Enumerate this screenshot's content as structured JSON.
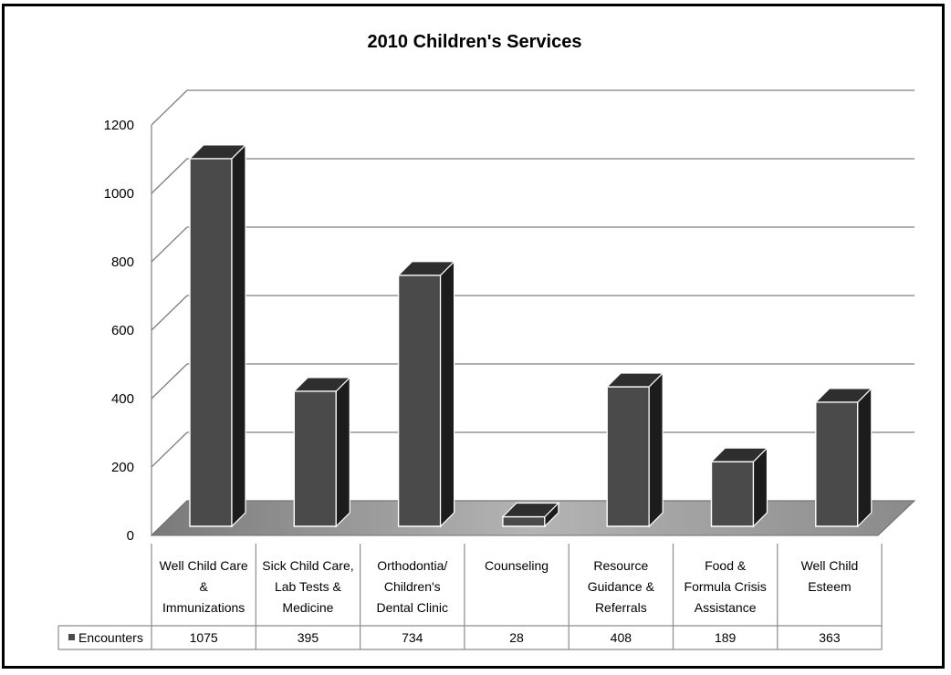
{
  "chart_data": {
    "type": "bar",
    "title": "2010 Children's Services",
    "categories": [
      [
        "Well Child Care",
        "&",
        "Immunizations"
      ],
      [
        "Sick Child Care,",
        "Lab Tests &",
        "Medicine"
      ],
      [
        "Orthodontia/",
        "Children's",
        "Dental Clinic"
      ],
      [
        "Counseling"
      ],
      [
        "Resource",
        "Guidance &",
        "Referrals"
      ],
      [
        "Food &",
        "Formula Crisis",
        "Assistance"
      ],
      [
        "Well Child",
        "Esteem"
      ]
    ],
    "series": [
      {
        "name": "Encounters",
        "values": [
          1075,
          395,
          734,
          28,
          408,
          189,
          363
        ]
      }
    ],
    "value_labels": [
      "1075",
      "395",
      "734",
      "28",
      "408",
      "189",
      "363"
    ],
    "ylim": [
      0,
      1200
    ],
    "yticks": [
      "0",
      "200",
      "400",
      "600",
      "800",
      "1000",
      "1200"
    ],
    "grid": true,
    "style": "3d-column",
    "colors": {
      "bar_front": "#4a4a4a",
      "bar_top": "#2e2e2e",
      "bar_side": "#1c1c1c",
      "floor": "#9a9a9a",
      "grid": "#7f7f7f"
    },
    "legend": "data-table"
  }
}
